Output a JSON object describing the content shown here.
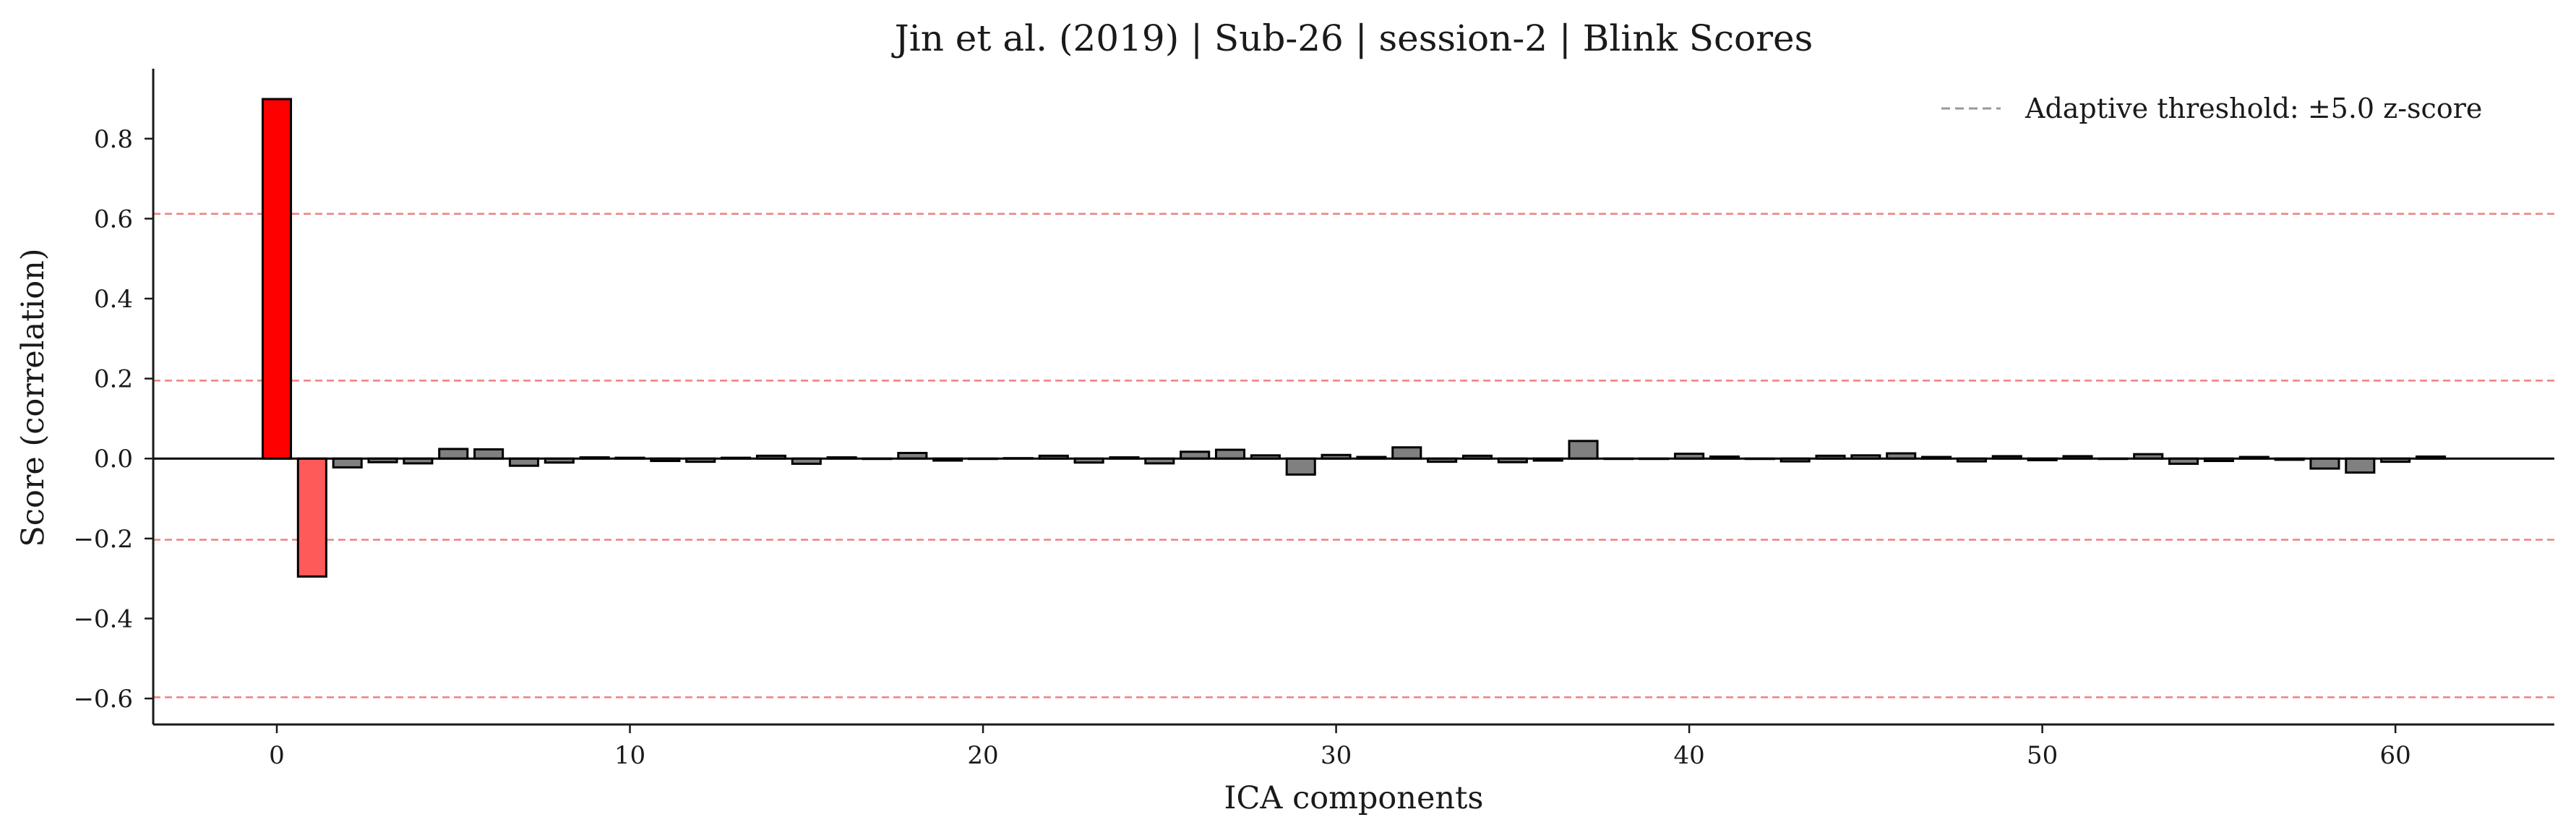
{
  "chart_data": {
    "type": "bar",
    "title": "Jin et al. (2019) | Sub-26 | session-2 | Blink Scores",
    "xlabel": "ICA components",
    "ylabel": "Score (correlation)",
    "xlim": [
      -3.5,
      64.5
    ],
    "ylim": [
      -0.665,
      0.975
    ],
    "xticks": [
      0,
      10,
      20,
      30,
      40,
      50,
      60
    ],
    "yticks": [
      -0.6,
      -0.4,
      -0.2,
      0.0,
      0.2,
      0.4,
      0.6,
      0.8
    ],
    "ytick_labels": [
      "−0.6",
      "−0.4",
      "−0.2",
      "0.0",
      "0.2",
      "0.4",
      "0.6",
      "0.8"
    ],
    "x": [
      0,
      1,
      2,
      3,
      4,
      5,
      6,
      7,
      8,
      9,
      10,
      11,
      12,
      13,
      14,
      15,
      16,
      17,
      18,
      19,
      20,
      21,
      22,
      23,
      24,
      25,
      26,
      27,
      28,
      29,
      30,
      31,
      32,
      33,
      34,
      35,
      36,
      37,
      38,
      39,
      40,
      41,
      42,
      43,
      44,
      45,
      46,
      47,
      48,
      49,
      50,
      51,
      52,
      53,
      54,
      55,
      56,
      57,
      58,
      59,
      60,
      61
    ],
    "values": [
      0.899,
      -0.295,
      -0.022,
      -0.009,
      -0.012,
      0.024,
      0.023,
      -0.018,
      -0.01,
      0.003,
      0.002,
      -0.006,
      -0.008,
      0.002,
      0.007,
      -0.013,
      0.003,
      0.0,
      0.014,
      -0.005,
      0.0,
      0.001,
      0.007,
      -0.01,
      0.003,
      -0.012,
      0.017,
      0.022,
      0.008,
      -0.04,
      0.009,
      0.004,
      0.028,
      -0.008,
      0.007,
      -0.009,
      -0.005,
      0.044,
      0.0,
      0.0,
      0.012,
      0.005,
      0.0,
      -0.007,
      0.007,
      0.008,
      0.013,
      0.004,
      -0.007,
      0.006,
      -0.004,
      0.006,
      0.0,
      0.011,
      -0.013,
      -0.006,
      0.004,
      -0.003,
      -0.025,
      -0.035,
      -0.008,
      0.005
    ],
    "highlighted": [
      {
        "index": 0,
        "color": "#ff0000"
      },
      {
        "index": 1,
        "color": "#ff5a5a"
      }
    ],
    "bar_color": "#808080",
    "bar_edge_color": "#000000",
    "threshold_lines": [
      0.612,
      0.195,
      -0.203,
      -0.597
    ],
    "threshold_color": "#f08080",
    "legend": {
      "position": "top-right",
      "entries": [
        {
          "label": "Adaptive threshold: ±5.0 z-score",
          "style": "dashed",
          "color": "#999999"
        }
      ]
    },
    "grid": false
  }
}
